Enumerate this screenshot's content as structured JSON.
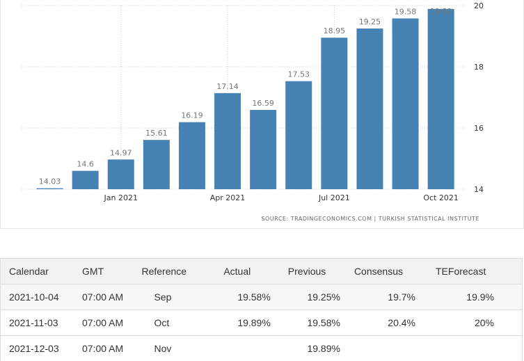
{
  "chart_data": {
    "type": "bar",
    "categories": [
      null,
      null,
      "Jan 2021",
      null,
      null,
      "Apr 2021",
      null,
      null,
      "Jul 2021",
      null,
      null,
      "Oct 2021"
    ],
    "values": [
      14.03,
      14.6,
      14.97,
      15.61,
      16.19,
      17.14,
      16.59,
      17.53,
      18.95,
      19.25,
      19.58,
      19.89
    ],
    "color": "#4682b4",
    "ylim": [
      14,
      20
    ],
    "yticks": [
      14,
      16,
      18,
      20
    ],
    "grid": true,
    "source": "SOURCE: TRADINGECONOMICS.COM | TURKISH STATISTICAL INSTITUTE"
  },
  "table": {
    "header": [
      "Calendar",
      "GMT",
      "Reference",
      "Actual",
      "Previous",
      "Consensus",
      "TEForecast"
    ],
    "rows": [
      [
        "2021-10-04",
        "07:00 AM",
        "Sep",
        "19.58%",
        "19.25%",
        "19.7%",
        "19.9%"
      ],
      [
        "2021-11-03",
        "07:00 AM",
        "Oct",
        "19.89%",
        "19.58%",
        "20.4%",
        "20%"
      ],
      [
        "2021-12-03",
        "07:00 AM",
        "Nov",
        null,
        "19.89%",
        null,
        null
      ]
    ]
  }
}
